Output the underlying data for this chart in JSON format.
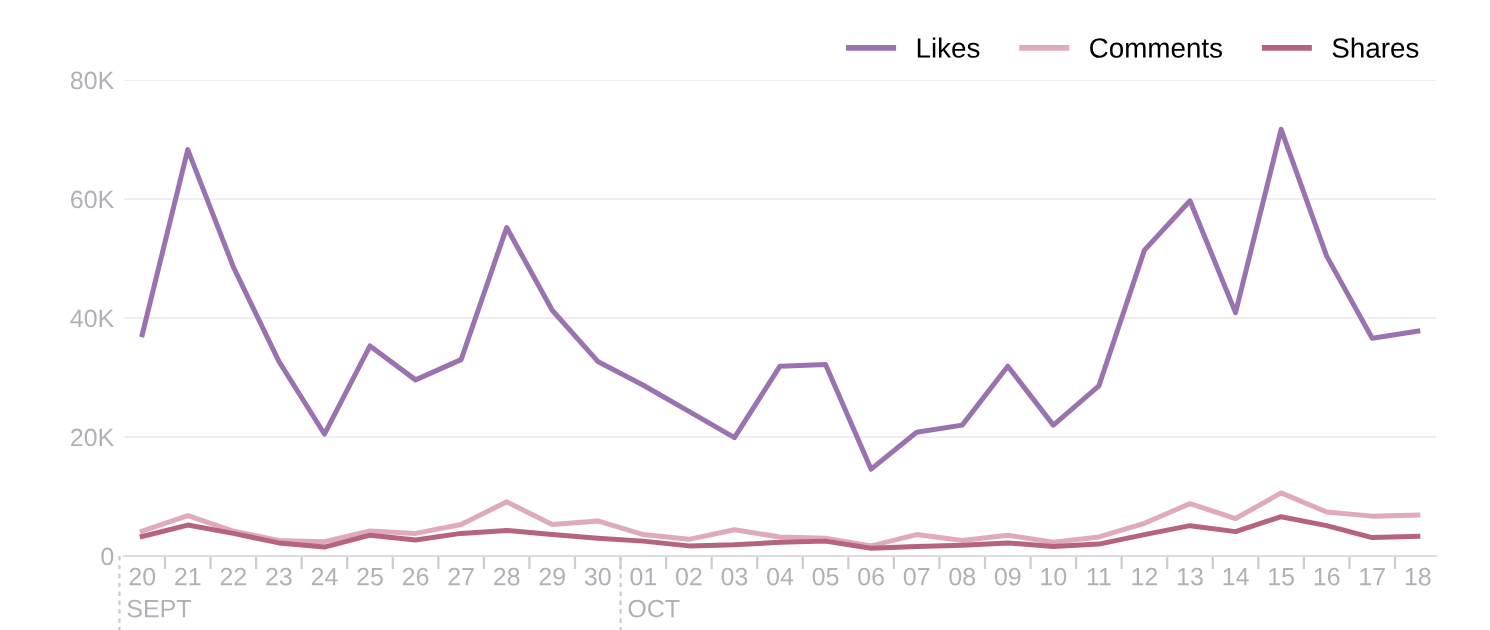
{
  "chart_data": {
    "type": "line",
    "categories": [
      "20",
      "21",
      "22",
      "23",
      "24",
      "25",
      "26",
      "27",
      "28",
      "29",
      "30",
      "01",
      "02",
      "03",
      "04",
      "05",
      "06",
      "07",
      "08",
      "09",
      "10",
      "11",
      "12",
      "13",
      "14",
      "15",
      "16",
      "17",
      "18"
    ],
    "series": [
      {
        "name": "Likes",
        "color": "#9b72b0",
        "values": [
          37.2,
          68.3,
          48.6,
          32.7,
          20.5,
          35.3,
          29.6,
          33.0,
          55.2,
          41.3,
          32.7,
          28.7,
          24.3,
          19.9,
          31.9,
          32.2,
          14.6,
          20.8,
          22.0,
          31.9,
          22.0,
          28.6,
          51.4,
          59.7,
          40.9,
          71.7,
          50.4,
          36.6,
          37.8
        ]
      },
      {
        "name": "Comments",
        "color": "#dfaabd",
        "values": [
          4.2,
          6.8,
          4.2,
          2.6,
          2.4,
          4.2,
          3.8,
          5.3,
          9.1,
          5.3,
          5.9,
          3.6,
          2.8,
          4.4,
          3.2,
          3.0,
          1.7,
          3.6,
          2.6,
          3.5,
          2.3,
          3.2,
          5.5,
          8.8,
          6.3,
          10.6,
          7.4,
          6.7,
          6.9
        ]
      },
      {
        "name": "Shares",
        "color": "#b5637f",
        "values": [
          3.3,
          5.2,
          3.8,
          2.2,
          1.5,
          3.5,
          2.7,
          3.8,
          4.3,
          3.6,
          3.0,
          2.5,
          1.7,
          1.9,
          2.3,
          2.5,
          1.3,
          1.6,
          1.8,
          2.2,
          1.6,
          2.0,
          3.6,
          5.1,
          4.1,
          6.6,
          5.1,
          3.1,
          3.3
        ]
      }
    ],
    "ylim": [
      0,
      80
    ],
    "yticks": [
      0,
      {
        "value": 20,
        "label": "20K"
      },
      {
        "value": 40,
        "label": "40K"
      },
      {
        "value": 60,
        "label": "60K"
      },
      {
        "value": 80,
        "label": "80K"
      }
    ],
    "grid": "y",
    "legend": "top right",
    "marker": "none",
    "line_style": "solid",
    "annotations": [
      "SEPT",
      "OCT"
    ]
  }
}
